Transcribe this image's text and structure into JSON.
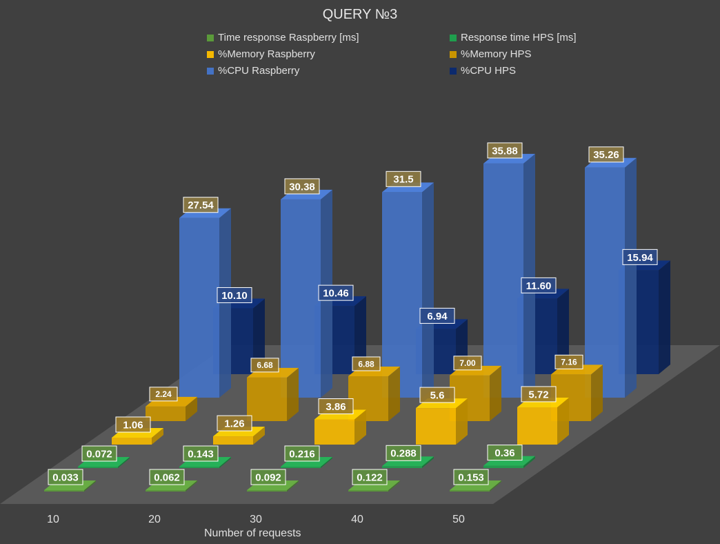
{
  "chart_data": {
    "type": "bar",
    "title": "QUERY №3",
    "xlabel": "Number of requests",
    "ylabel": "",
    "categories": [
      "10",
      "20",
      "30",
      "40",
      "50"
    ],
    "series": [
      {
        "name": "Time response Raspberry [ms]",
        "color": "#5b9a3a",
        "values": [
          0.033,
          0.062,
          0.092,
          0.122,
          0.153
        ],
        "labels": [
          "0.033",
          "0.062",
          "0.092",
          "0.122",
          "0.153"
        ]
      },
      {
        "name": "Response time HPS [ms]",
        "color": "#1f9e4d",
        "values": [
          0.072,
          0.143,
          0.216,
          0.288,
          0.36
        ],
        "labels": [
          "0.072",
          "0.143",
          "0.216",
          "0.288",
          "0.36"
        ]
      },
      {
        "name": "%Memory Raspberry",
        "color": "#f5b800",
        "values": [
          1.06,
          1.26,
          3.86,
          5.6,
          5.72
        ],
        "labels": [
          "1.06",
          "1.26",
          "3.86",
          "5.6",
          "5.72"
        ]
      },
      {
        "name": "%Memory HPS",
        "color": "#c89400",
        "values": [
          2.24,
          6.68,
          6.88,
          7.0,
          7.16
        ],
        "labels": [
          "2.24",
          "6.68",
          "6.88",
          "7.00",
          "7.16"
        ]
      },
      {
        "name": "%CPU Raspberry",
        "color": "#4472c4",
        "values": [
          27.54,
          30.38,
          31.5,
          35.88,
          35.26
        ],
        "labels": [
          "27.54",
          "30.38",
          "31.5",
          "35.88",
          "35.26"
        ]
      },
      {
        "name": "%CPU HPS",
        "color": "#0c2a6e",
        "values": [
          10.1,
          10.46,
          6.94,
          11.6,
          15.94
        ],
        "labels": [
          "10.10",
          "10.46",
          "6.94",
          "11.60",
          "15.94"
        ]
      }
    ],
    "legend_position": "top"
  }
}
